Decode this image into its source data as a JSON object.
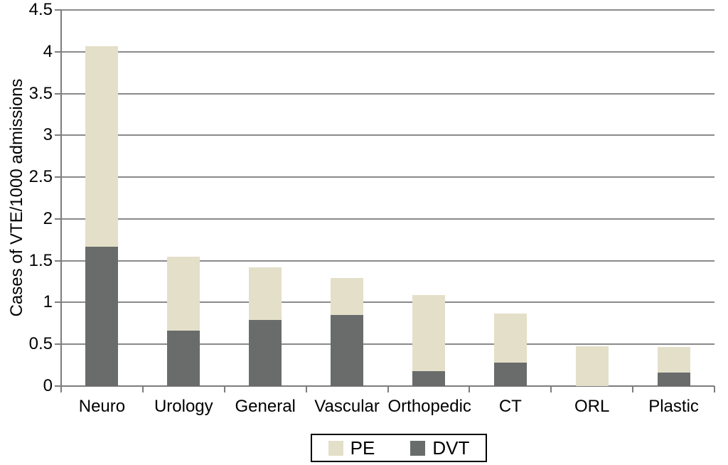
{
  "chart_data": {
    "type": "bar",
    "stacked": true,
    "title": "",
    "xlabel": "",
    "ylabel": "Cases of VTE/1000 admissions",
    "categories": [
      "Neuro",
      "Urology",
      "General",
      "Vascular",
      "Orthopedic",
      "CT",
      "ORL",
      "Plastic"
    ],
    "series": [
      {
        "name": "PE",
        "color": "#e4dfc9",
        "values": [
          2.4,
          0.89,
          0.63,
          0.44,
          0.91,
          0.59,
          0.48,
          0.31
        ]
      },
      {
        "name": "DVT",
        "color": "#696c6b",
        "values": [
          1.67,
          0.66,
          0.79,
          0.85,
          0.18,
          0.28,
          0.0,
          0.16
        ]
      }
    ],
    "stack_order": [
      "DVT",
      "PE"
    ],
    "totals": [
      4.07,
      1.55,
      1.42,
      1.29,
      1.09,
      0.87,
      0.48,
      0.47
    ],
    "ylim": [
      0,
      4.5
    ],
    "y_ticks": [
      "0",
      "0.5",
      "1",
      "1.5",
      "2",
      "2.5",
      "3",
      "3.5",
      "4",
      "4.5"
    ],
    "grid": true,
    "legend_position": "bottom-center",
    "colors": {
      "gridline": "#8a8a8a",
      "axis": "#7c7c7c",
      "text": "#000000",
      "background": "#ffffff",
      "legend_border": "#000000"
    }
  }
}
